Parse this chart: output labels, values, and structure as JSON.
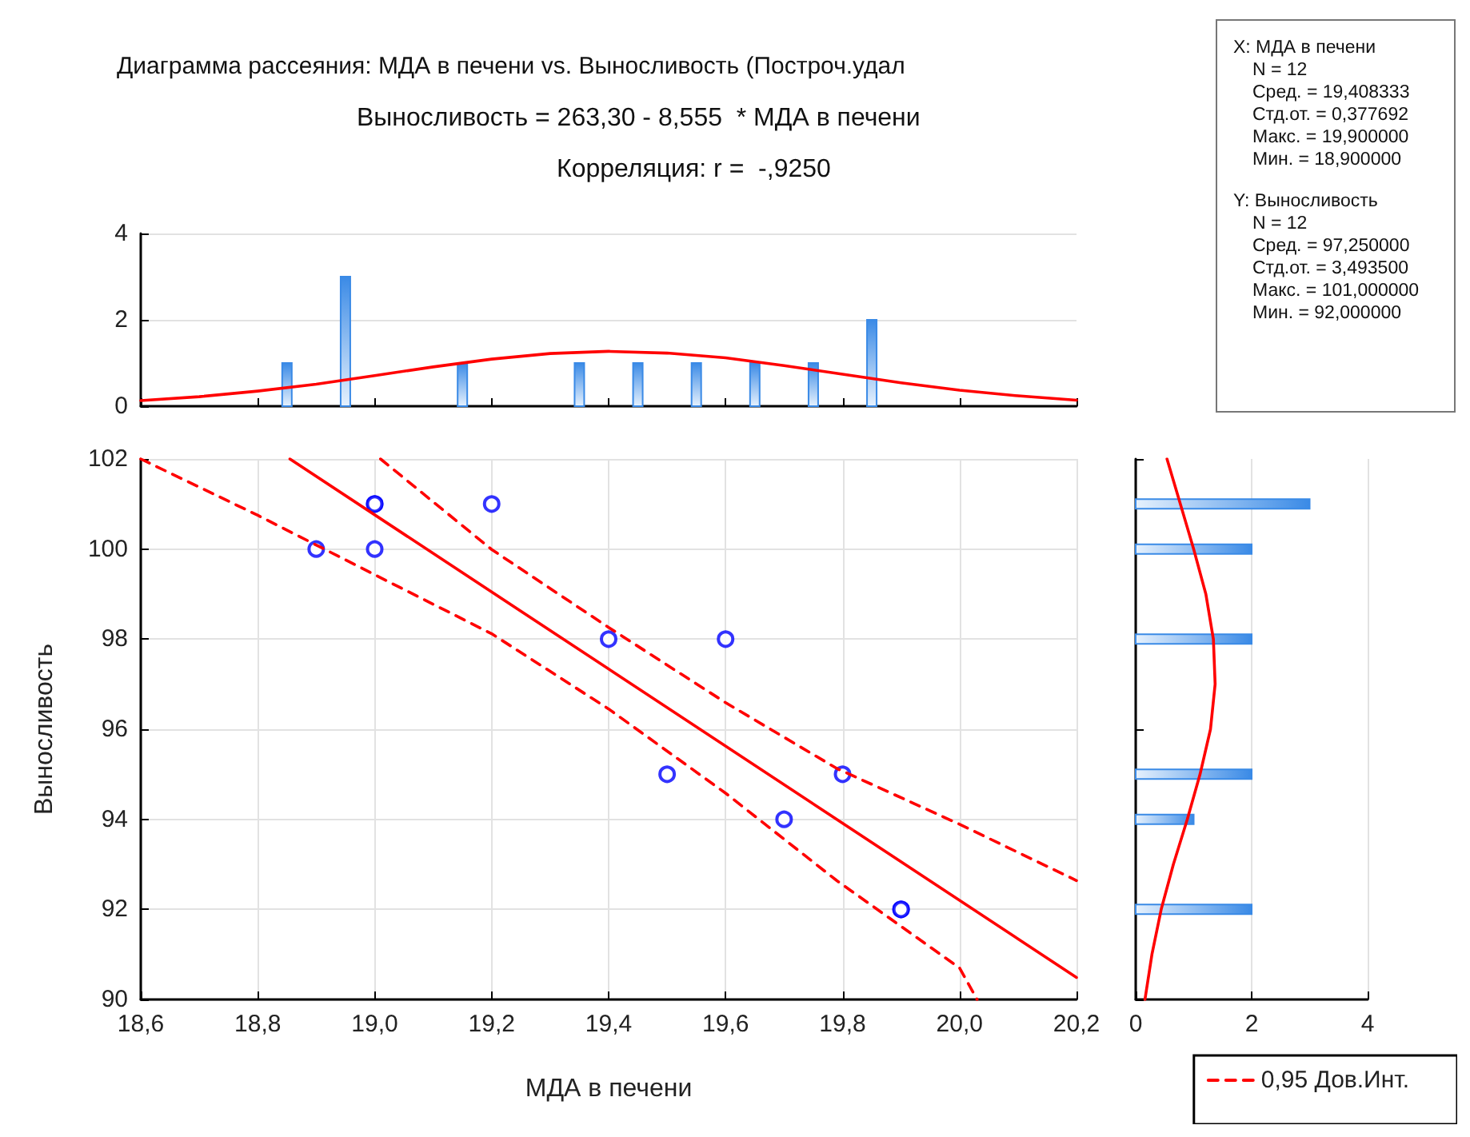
{
  "chart_data": [
    {
      "type": "bar",
      "title": "Диаграмма рассеяния: МДА в печени vs. Выносливость (Построч.удал",
      "subtitle": "Выносливость = 263,30 - 8,555  * МДА в печени",
      "annotations": [
        "Корреляция: r =  -,9250"
      ],
      "x": [
        18.85,
        18.95,
        19.15,
        19.35,
        19.45,
        19.55,
        19.65,
        19.75,
        19.85
      ],
      "xlim": [
        18.6,
        20.2
      ],
      "xticks": [
        18.6,
        18.8,
        19.0,
        19.2,
        19.4,
        19.6,
        19.8,
        20.0,
        20.2
      ],
      "ylim": [
        0,
        4
      ],
      "yticks": [
        0,
        2,
        4
      ],
      "grid": "y",
      "tick_labels": "y",
      "series": [
        {
          "type": "bar",
          "color": "#3a8ae6",
          "values": [
            1,
            3,
            1,
            1,
            1,
            1,
            1,
            1,
            2
          ]
        },
        {
          "type": "line",
          "color": "#ff0000",
          "x": [
            18.6,
            18.7,
            18.8,
            18.9,
            19.0,
            19.1,
            19.2,
            19.3,
            19.4,
            19.5,
            19.6,
            19.7,
            19.8,
            19.9,
            20.0,
            20.1,
            20.2
          ],
          "values": [
            0.13,
            0.22,
            0.35,
            0.51,
            0.71,
            0.91,
            1.09,
            1.22,
            1.27,
            1.23,
            1.12,
            0.94,
            0.74,
            0.54,
            0.37,
            0.24,
            0.14
          ]
        }
      ]
    },
    {
      "type": "scatter",
      "xlabel": "МДА в печени",
      "ylabel": "Выносливость",
      "xlim": [
        18.6,
        20.2
      ],
      "xticks": [
        {
          "value": 18.6,
          "label": "18,6"
        },
        {
          "value": 18.8,
          "label": "18,8"
        },
        {
          "value": 19.0,
          "label": "19,0"
        },
        {
          "value": 19.2,
          "label": "19,2"
        },
        {
          "value": 19.4,
          "label": "19,4"
        },
        {
          "value": 19.6,
          "label": "19,6"
        },
        {
          "value": 19.8,
          "label": "19,8"
        },
        {
          "value": 20.0,
          "label": "20,0"
        },
        {
          "value": 20.2,
          "label": "20,2"
        }
      ],
      "ylim": [
        90,
        102
      ],
      "yticks": [
        90,
        92,
        94,
        96,
        98,
        100,
        102
      ],
      "grid": true,
      "legend": "bottom right",
      "series": [
        {
          "type": "scatter",
          "marker": "circle",
          "color": "#0000ff",
          "x": [
            18.9,
            19.0,
            19.0,
            19.0,
            19.2,
            19.4,
            19.5,
            19.6,
            19.7,
            19.8,
            19.9,
            19.9
          ],
          "values": [
            100,
            101,
            101,
            100,
            101,
            98,
            95,
            98,
            94,
            95,
            92,
            92
          ]
        },
        {
          "type": "line",
          "color": "#ff0000",
          "line_style": "solid",
          "x": [
            18.855,
            20.2
          ],
          "values": [
            102,
            90.49
          ]
        },
        {
          "type": "line",
          "name": "0,95 Дов.Инт.",
          "color": "#ff0000",
          "line_style": "dashed",
          "x": [
            19.01,
            19.2,
            19.4,
            19.6,
            19.79,
            20.0,
            20.2
          ],
          "values": [
            102,
            99.99,
            98.26,
            96.59,
            95.13,
            93.89,
            92.64
          ]
        },
        {
          "type": "line",
          "color": "#ff0000",
          "line_style": "dashed",
          "x": [
            18.6,
            18.8,
            19.0,
            19.2,
            19.4,
            19.6,
            19.79,
            20.0,
            20.03
          ],
          "values": [
            102,
            100.75,
            99.43,
            98.12,
            96.45,
            94.58,
            92.64,
            90.7,
            90
          ]
        }
      ]
    },
    {
      "type": "bar",
      "orientation": "horizontal",
      "x": [
        101,
        100,
        98,
        95,
        94,
        92
      ],
      "ylim": [
        90,
        102
      ],
      "yticks": [
        90,
        92,
        94,
        96,
        98,
        100,
        102
      ],
      "xlim": [
        0,
        4
      ],
      "xticks": [
        0,
        2,
        4
      ],
      "grid": "x",
      "tick_labels": "x",
      "series": [
        {
          "type": "bar",
          "color": "#3a8ae6",
          "values": [
            3,
            2,
            2,
            2,
            1,
            2
          ]
        },
        {
          "type": "line",
          "color": "#ff0000",
          "x": [
            90,
            91,
            92,
            93,
            94,
            95,
            96,
            97,
            98,
            99,
            100,
            101,
            102
          ],
          "values": [
            0.16,
            0.28,
            0.44,
            0.65,
            0.89,
            1.11,
            1.29,
            1.37,
            1.34,
            1.21,
            1.0,
            0.77,
            0.54
          ]
        }
      ]
    },
    {
      "type": "other",
      "annotations": [
        "X:  МДА в печени",
        "N = 12",
        "Сред. = 19,408333",
        "Стд.от. = 0,377692",
        "Макс. = 19,900000",
        "Мин. = 18,900000",
        "Y:  Выносливость",
        "N = 12",
        "Сред. = 97,250000",
        "Стд.от. = 3,493500",
        "Макс. = 101,000000",
        "Мин. = 92,000000"
      ]
    }
  ]
}
